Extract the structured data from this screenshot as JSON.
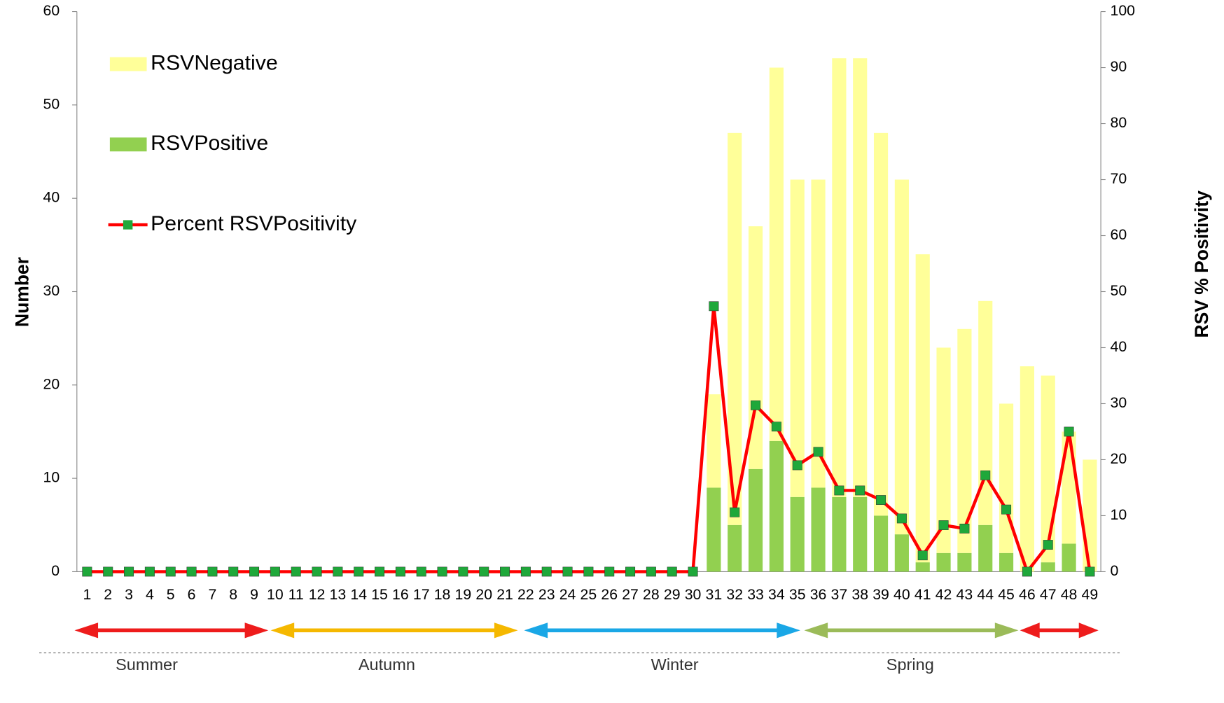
{
  "chart_data": {
    "type": "bar_line",
    "categories": [
      "1",
      "2",
      "3",
      "4",
      "5",
      "6",
      "7",
      "8",
      "9",
      "10",
      "11",
      "12",
      "13",
      "14",
      "15",
      "16",
      "17",
      "18",
      "19",
      "20",
      "21",
      "22",
      "23",
      "24",
      "25",
      "26",
      "27",
      "28",
      "29",
      "30",
      "31",
      "32",
      "33",
      "34",
      "35",
      "36",
      "37",
      "38",
      "39",
      "40",
      "41",
      "42",
      "43",
      "44",
      "45",
      "46",
      "47",
      "48",
      "49"
    ],
    "series": [
      {
        "name": "RSVPositive",
        "color": "#92d050",
        "stacked": true,
        "values": [
          0,
          0,
          0,
          0,
          0,
          0,
          0,
          0,
          0,
          0,
          0,
          0,
          0,
          0,
          0,
          0,
          0,
          0,
          0,
          0,
          0,
          0,
          0,
          0,
          0,
          0,
          0,
          0,
          0,
          0,
          9,
          5,
          11,
          14,
          8,
          9,
          8,
          8,
          6,
          4,
          1,
          2,
          2,
          5,
          2,
          0,
          1,
          3,
          0
        ]
      },
      {
        "name": "RSVNegative",
        "color": "#ffff99",
        "stacked": true,
        "values": [
          0,
          0,
          0,
          0,
          0,
          0,
          0,
          0,
          0,
          0,
          0,
          0,
          0,
          0,
          0,
          0,
          0,
          0,
          0,
          0,
          0,
          0,
          0,
          0,
          0,
          0,
          0,
          0,
          0,
          0,
          10,
          42,
          26,
          40,
          34,
          33,
          47,
          47,
          41,
          38,
          33,
          22,
          24,
          24,
          16,
          22,
          20,
          12,
          12
        ]
      },
      {
        "name": "Percent RSVPositivity",
        "color": "#ff0000",
        "marker_color": "#1fa83a",
        "axis": "y2",
        "values": [
          0,
          0,
          0,
          0,
          0,
          0,
          0,
          0,
          0,
          0,
          0,
          0,
          0,
          0,
          0,
          0,
          0,
          0,
          0,
          0,
          0,
          0,
          0,
          0,
          0,
          0,
          0,
          0,
          0,
          0,
          47.4,
          10.6,
          29.7,
          25.9,
          19,
          21.4,
          14.5,
          14.5,
          12.8,
          9.5,
          2.9,
          8.3,
          7.7,
          17.2,
          11.1,
          0,
          4.8,
          25,
          0
        ]
      }
    ],
    "y_label": "Number",
    "y2_label": "RSV % Positivity",
    "ylim": [
      0,
      60
    ],
    "yticks": [
      0,
      10,
      20,
      30,
      40,
      50,
      60
    ],
    "y2lim": [
      0,
      100
    ],
    "y2ticks": [
      0,
      10,
      20,
      30,
      40,
      50,
      60,
      70,
      80,
      90,
      100
    ],
    "annotations": [
      "Summer",
      "Autumn",
      "Winter",
      "Spring"
    ]
  }
}
